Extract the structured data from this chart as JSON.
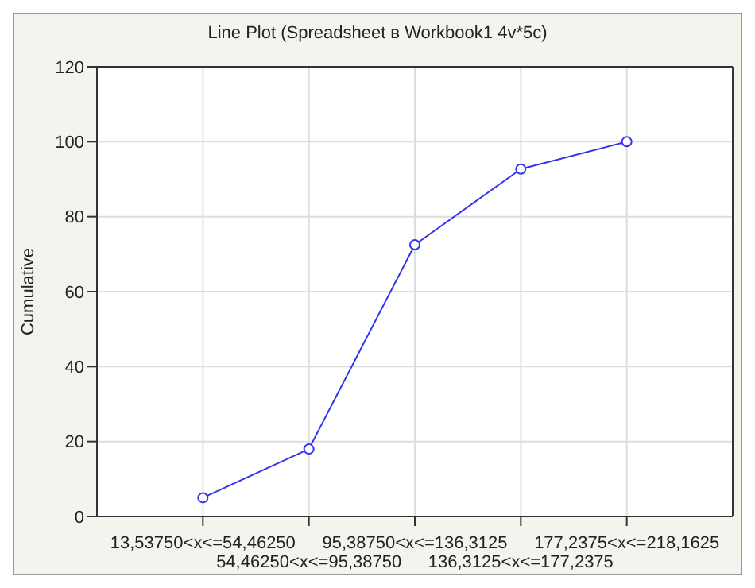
{
  "chart_data": {
    "type": "line",
    "title": "Line Plot (Spreadsheet в Workbook1 4v*5c)",
    "ylabel": "Cumulative",
    "categories": [
      "13,53750<x<=54,46250",
      "54,46250<x<=95,38750",
      "95,38750<x<=136,3125",
      "136,3125<x<=177,2375",
      "177,2375<x<=218,1625"
    ],
    "series": [
      {
        "color": "#3333ee",
        "values": [
          5,
          18,
          72.5,
          92.7,
          100
        ]
      }
    ],
    "ylim": [
      0,
      120
    ],
    "yticks": [
      0,
      20,
      40,
      60,
      80,
      100,
      120
    ],
    "grid": true,
    "marker": "circle",
    "line_style": "solid"
  }
}
